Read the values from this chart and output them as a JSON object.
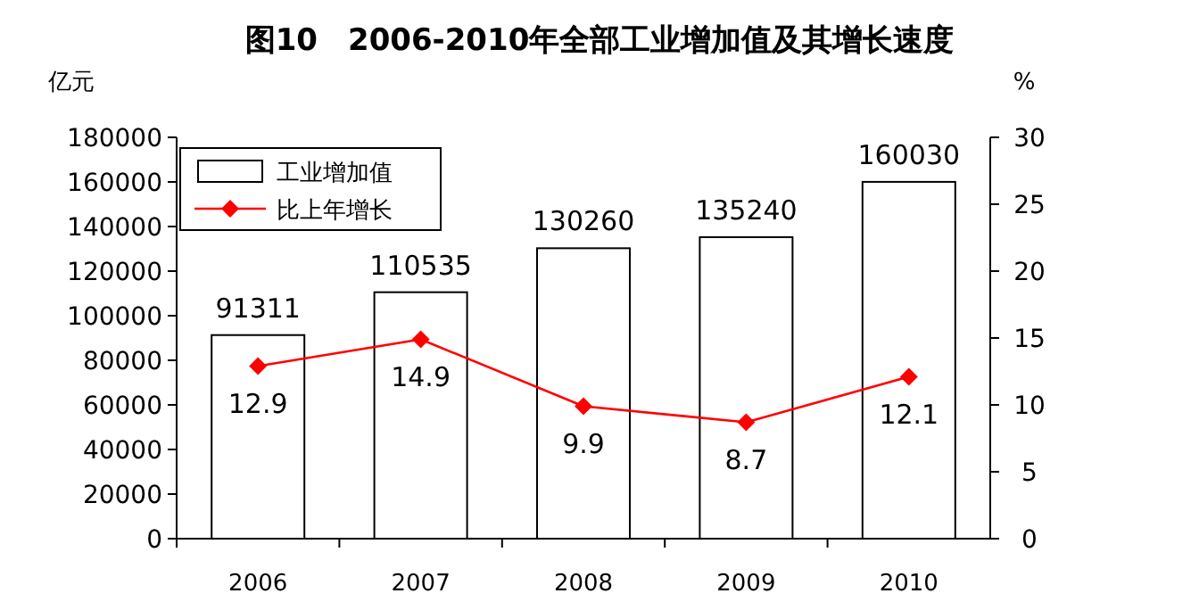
{
  "chart_data": {
    "type": "bar",
    "title": "图10　2006-2010年全部工业增加值及其增长速度",
    "ylabel": "亿元",
    "y2label": "%",
    "categories": [
      "2006",
      "2007",
      "2008",
      "2009",
      "2010"
    ],
    "series": [
      {
        "name": "工业增加值",
        "color": "#ffffff",
        "values": [
          91311,
          110535,
          130260,
          135240,
          160030
        ]
      },
      {
        "name": "比上年增长",
        "type": "line",
        "axis": "y2",
        "color": "#ff0000",
        "marker": "diamond",
        "values": [
          12.9,
          14.9,
          9.9,
          8.7,
          12.1
        ]
      }
    ],
    "ylim": [
      0,
      180000
    ],
    "yticks": [
      0,
      20000,
      40000,
      60000,
      80000,
      100000,
      120000,
      140000,
      160000,
      180000
    ],
    "y2lim": [
      0,
      30
    ],
    "y2ticks": [
      0,
      5,
      10,
      15,
      20,
      25,
      30
    ],
    "data_labels": true,
    "legend": "top left"
  }
}
